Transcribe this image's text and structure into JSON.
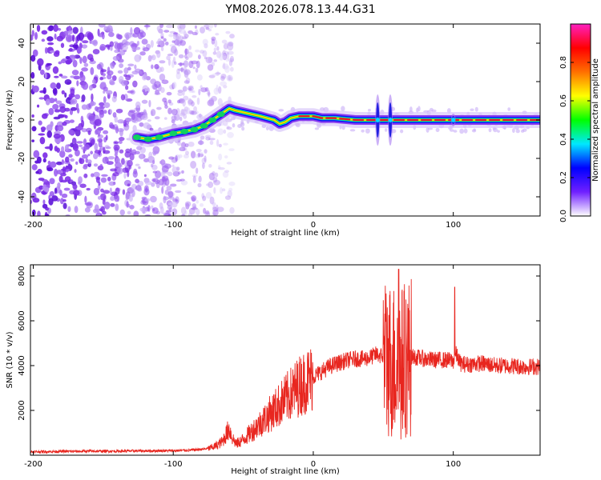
{
  "figure": {
    "title": "YM08.2026.078.13.44.G31"
  },
  "colors": {
    "snr_line": "#e8261f",
    "frame": "#000000",
    "speckle": "#7a1fe0"
  },
  "chart_data": [
    {
      "type": "heatmap",
      "name": "spectrogram",
      "title": "YM08.2026.078.13.44.G31",
      "xlabel": "Height of straight line (km)",
      "ylabel": "Frequency (Hz)",
      "xlim": [
        -202,
        162
      ],
      "ylim": [
        -50,
        50
      ],
      "xticks": [
        -200,
        -100,
        0,
        100
      ],
      "xtick_labels": [
        "-200",
        "-100",
        "0",
        "100"
      ],
      "yticks": [
        -40,
        -20,
        0,
        20,
        40
      ],
      "ytick_labels": [
        "-40",
        "-20",
        "0",
        "20",
        "40"
      ],
      "noise_region_km": [
        -202,
        -58
      ],
      "ridge_path": [
        [
          -126,
          -9
        ],
        [
          -118,
          -10
        ],
        [
          -110,
          -9
        ],
        [
          -100,
          -7
        ],
        [
          -92,
          -6
        ],
        [
          -85,
          -5
        ],
        [
          -78,
          -3
        ],
        [
          -72,
          0
        ],
        [
          -66,
          3
        ],
        [
          -60,
          6
        ],
        [
          -56,
          5
        ],
        [
          -50,
          4
        ],
        [
          -44,
          3
        ],
        [
          -38,
          2
        ],
        [
          -33,
          1
        ],
        [
          -28,
          0
        ],
        [
          -24,
          -2
        ],
        [
          -20,
          -1
        ],
        [
          -16,
          1
        ],
        [
          -10,
          2
        ],
        [
          -4,
          2
        ],
        [
          0,
          2
        ],
        [
          6,
          1
        ],
        [
          15,
          1
        ],
        [
          30,
          0
        ],
        [
          45,
          0
        ],
        [
          60,
          0
        ],
        [
          80,
          0
        ],
        [
          100,
          0
        ],
        [
          120,
          0
        ],
        [
          140,
          0
        ],
        [
          162,
          0
        ]
      ],
      "disturbances_km": [
        46,
        55,
        100
      ]
    },
    {
      "type": "colorbar",
      "name": "colorbar",
      "label": "Normalized spectral amplitude",
      "range": [
        0,
        1
      ],
      "ticks": [
        0.0,
        0.2,
        0.4,
        0.6,
        0.8
      ],
      "tick_labels": [
        "0.0",
        "0.2",
        "0.4",
        "0.6",
        "0.8"
      ],
      "colormap": [
        "#ffffff",
        "#7020ff",
        "#0000ff",
        "#00e8ff",
        "#00ff00",
        "#ffff00",
        "#ff7000",
        "#ff0000",
        "#ff20c0"
      ]
    },
    {
      "type": "line",
      "name": "snr",
      "xlabel": "Height of straight line (km)",
      "ylabel": "SNR (10 * v/v)",
      "xlim": [
        -202,
        162
      ],
      "ylim": [
        0,
        8500
      ],
      "xticks": [
        -200,
        -100,
        0,
        100
      ],
      "xtick_labels": [
        "-200",
        "-100",
        "0",
        "100"
      ],
      "yticks": [
        2000,
        4000,
        6000,
        8000
      ],
      "ytick_labels": [
        "2000",
        "4000",
        "6000",
        "8000"
      ],
      "series": [
        {
          "name": "SNR",
          "x": [
            -202,
            -190,
            -180,
            -170,
            -160,
            -150,
            -140,
            -130,
            -120,
            -110,
            -100,
            -90,
            -80,
            -75,
            -70,
            -65,
            -60,
            -58,
            -55,
            -50,
            -45,
            -40,
            -35,
            -30,
            -25,
            -20,
            -15,
            -10,
            -5,
            0,
            5,
            10,
            15,
            20,
            25,
            30,
            35,
            40,
            45,
            50,
            54,
            57,
            60,
            63,
            66,
            70,
            75,
            80,
            85,
            90,
            95,
            100,
            102,
            105,
            110,
            120,
            130,
            140,
            150,
            162
          ],
          "y": [
            150,
            160,
            170,
            170,
            180,
            180,
            180,
            190,
            190,
            200,
            200,
            220,
            260,
            300,
            400,
            600,
            1200,
            800,
            500,
            700,
            1000,
            1300,
            1600,
            1900,
            2200,
            2500,
            2800,
            3100,
            3300,
            3500,
            3700,
            3900,
            4050,
            4150,
            4250,
            4300,
            4300,
            4350,
            4500,
            4400,
            4300,
            4200,
            4100,
            4000,
            4300,
            4400,
            4350,
            4300,
            4250,
            4250,
            4250,
            4200,
            4500,
            4100,
            4050,
            4100,
            4000,
            4000,
            3950,
            3950
          ],
          "annotations": [
            {
              "x": 61,
              "y": 8300,
              "note": "peak"
            },
            {
              "x": 101,
              "y": 7500,
              "note": "spike"
            }
          ]
        }
      ]
    }
  ]
}
